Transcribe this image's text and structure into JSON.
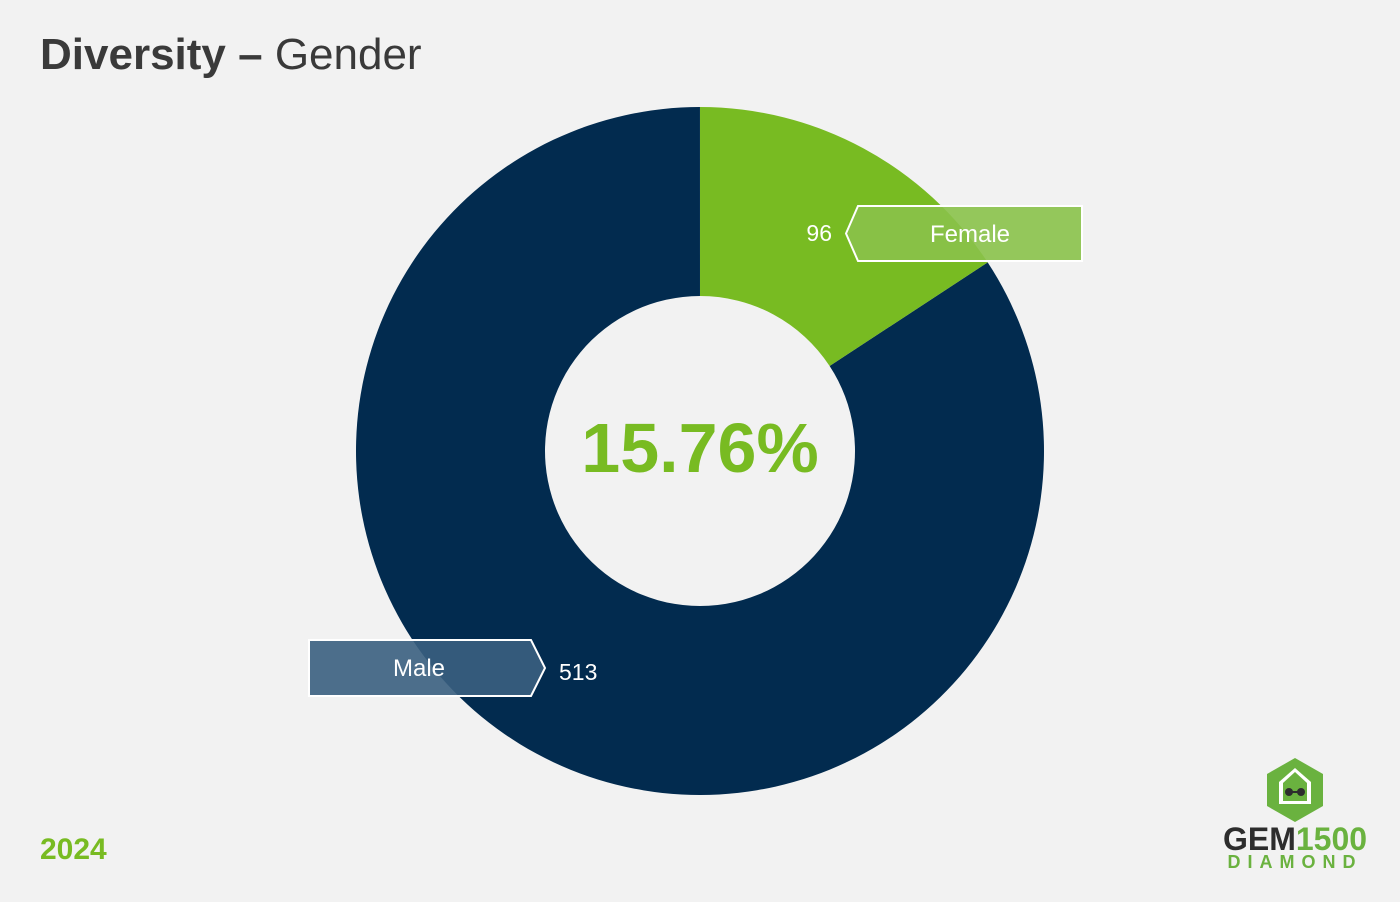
{
  "header": {
    "title_bold": "Diversity –",
    "title_light": "Gender"
  },
  "footer": {
    "year": "2024"
  },
  "logo": {
    "brand": "GEM",
    "number": "1500",
    "tier": "DIAMOND"
  },
  "colors": {
    "female": "#78bb22",
    "male": "#022b4f",
    "background": "#f2f2f2",
    "accent": "#78bb22"
  },
  "chart_data": {
    "type": "pie",
    "title": "",
    "center_label": "15.76%",
    "series": [
      {
        "name": "Female",
        "value": 96
      },
      {
        "name": "Male",
        "value": 513
      }
    ],
    "labels": {
      "female_value": "96",
      "female_name": "Female",
      "male_value": "513",
      "male_name": "Male"
    }
  }
}
